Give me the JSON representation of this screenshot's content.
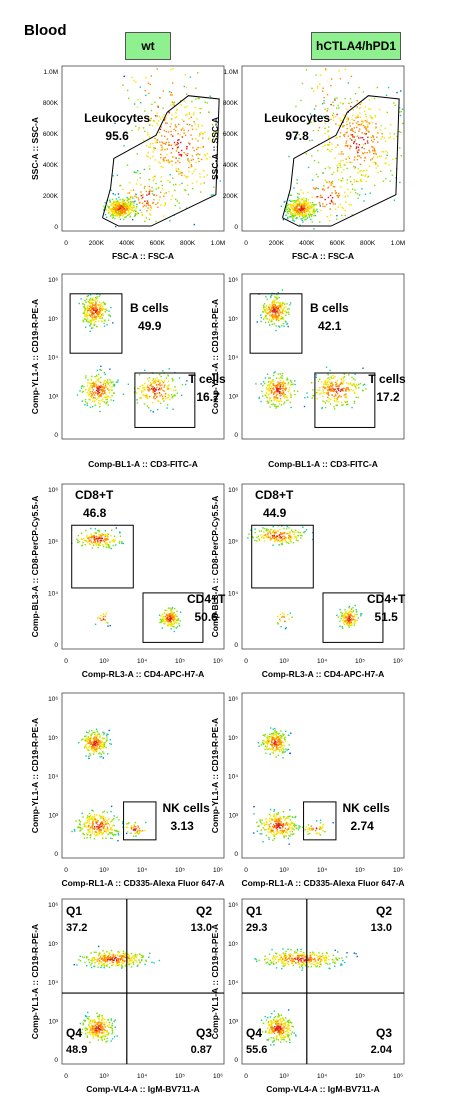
{
  "title": "Blood",
  "groups": [
    "wt",
    "hCTLA4/hPD1"
  ],
  "chart_data": [
    {
      "type": "scatter",
      "row": 0,
      "xlabel": "FSC-A :: FSC-A",
      "ylabel": "SSC-A :: SSC-A",
      "x_ticks": [
        "0",
        "200K",
        "400K",
        "600K",
        "800K",
        "1.0M"
      ],
      "y_ticks": [
        "0",
        "200K",
        "400K",
        "600K",
        "800K",
        "1.0M"
      ],
      "panels": [
        {
          "group": "wt",
          "gates": [
            {
              "name": "Leukocytes",
              "value": "95.6"
            }
          ]
        },
        {
          "group": "hCTLA4/hPD1",
          "gates": [
            {
              "name": "Leukocytes",
              "value": "97.8"
            }
          ]
        }
      ]
    },
    {
      "type": "scatter",
      "row": 1,
      "xlabel": "Comp-BL1-A :: CD3-FITC-A",
      "ylabel": "Comp-YL1-A :: CD19-R-PE-A",
      "y_ticks": [
        "0",
        "10³",
        "10⁴",
        "10⁵",
        "10⁶"
      ],
      "panels": [
        {
          "group": "wt",
          "gates": [
            {
              "name": "B cells",
              "value": "49.9"
            },
            {
              "name": "T cells",
              "value": "16.7"
            }
          ]
        },
        {
          "group": "hCTLA4/hPD1",
          "gates": [
            {
              "name": "B cells",
              "value": "42.1"
            },
            {
              "name": "T cells",
              "value": "17.2"
            }
          ]
        }
      ]
    },
    {
      "type": "scatter",
      "row": 2,
      "xlabel": "Comp-RL3-A :: CD4-APC-H7-A",
      "ylabel": "Comp-BL3-A :: CD8-PerCP-Cy5.5-A",
      "x_ticks": [
        "0",
        "10³",
        "10⁴",
        "10⁵",
        "10⁶"
      ],
      "y_ticks": [
        "0",
        "10⁴",
        "10⁵",
        "10⁶"
      ],
      "panels": [
        {
          "group": "wt",
          "gates": [
            {
              "name": "CD8+T",
              "value": "46.8"
            },
            {
              "name": "CD4+T",
              "value": "50.6"
            }
          ]
        },
        {
          "group": "hCTLA4/hPD1",
          "gates": [
            {
              "name": "CD8+T",
              "value": "44.9"
            },
            {
              "name": "CD4+T",
              "value": "51.5"
            }
          ]
        }
      ]
    },
    {
      "type": "scatter",
      "row": 3,
      "xlabel": "Comp-RL1-A :: CD335-Alexa Fluor 647-A",
      "ylabel": "Comp-YL1-A :: CD19-R-PE-A",
      "x_ticks": [
        "0",
        "10³",
        "10⁴",
        "10⁵",
        "10⁶"
      ],
      "y_ticks": [
        "0",
        "10³",
        "10⁴",
        "10⁵",
        "10⁶"
      ],
      "panels": [
        {
          "group": "wt",
          "gates": [
            {
              "name": "NK cells",
              "value": "3.13"
            }
          ]
        },
        {
          "group": "hCTLA4/hPD1",
          "gates": [
            {
              "name": "NK cells",
              "value": "2.74"
            }
          ]
        }
      ]
    },
    {
      "type": "scatter",
      "row": 4,
      "xlabel": "Comp-VL4-A :: IgM-BV711-A",
      "ylabel": "Comp-YL1-A :: CD19-R-PE-A",
      "x_ticks": [
        "0",
        "10³",
        "10⁴",
        "10⁵",
        "10⁶"
      ],
      "y_ticks": [
        "0",
        "10³",
        "10⁴",
        "10⁵",
        "10⁶"
      ],
      "panels": [
        {
          "group": "wt",
          "quadrants": [
            {
              "name": "Q1",
              "value": "37.2"
            },
            {
              "name": "Q2",
              "value": "13.0"
            },
            {
              "name": "Q3",
              "value": "0.87"
            },
            {
              "name": "Q4",
              "value": "48.9"
            }
          ]
        },
        {
          "group": "hCTLA4/hPD1",
          "quadrants": [
            {
              "name": "Q1",
              "value": "29.3"
            },
            {
              "name": "Q2",
              "value": "13.0"
            },
            {
              "name": "Q3",
              "value": "2.04"
            },
            {
              "name": "Q4",
              "value": "55.6"
            }
          ]
        }
      ]
    }
  ]
}
